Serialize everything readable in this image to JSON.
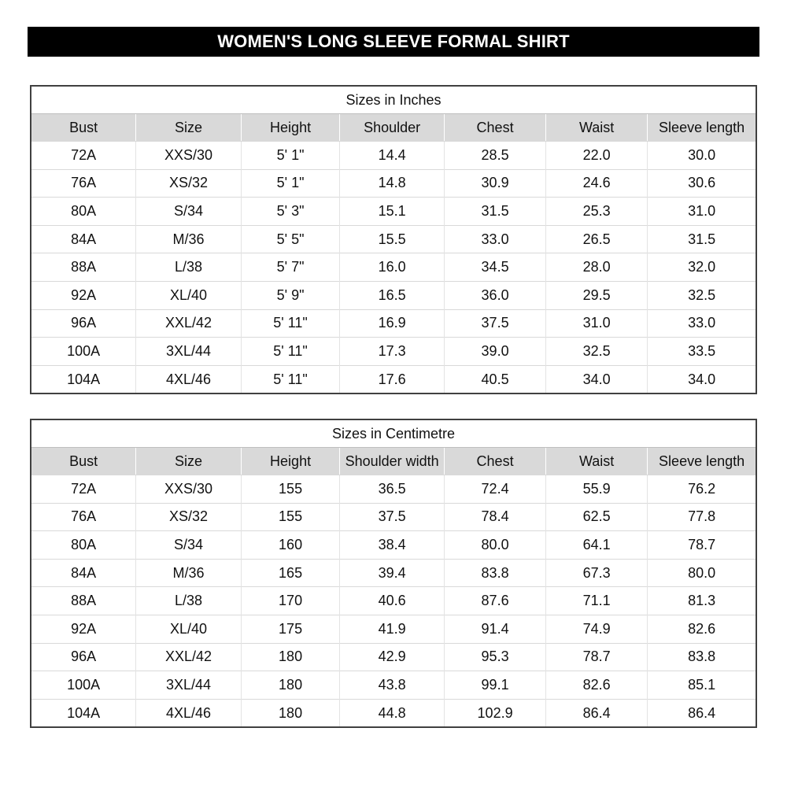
{
  "banner": {
    "title": "WOMEN'S LONG SLEEVE FORMAL SHIRT"
  },
  "colors": {
    "banner_bg": "#000000",
    "banner_text": "#ffffff",
    "header_fill": "#d9d9d9",
    "grid_line": "#d9d9d9",
    "outer_border": "#404040"
  },
  "tables": [
    {
      "title": "Sizes in Inches",
      "columns": [
        "Bust",
        "Size",
        "Height",
        "Shoulder",
        "Chest",
        "Waist",
        "Sleeve length"
      ],
      "rows": [
        [
          "72A",
          "XXS/30",
          "5' 1\"",
          "14.4",
          "28.5",
          "22.0",
          "30.0"
        ],
        [
          "76A",
          "XS/32",
          "5' 1\"",
          "14.8",
          "30.9",
          "24.6",
          "30.6"
        ],
        [
          "80A",
          "S/34",
          "5' 3\"",
          "15.1",
          "31.5",
          "25.3",
          "31.0"
        ],
        [
          "84A",
          "M/36",
          "5' 5\"",
          "15.5",
          "33.0",
          "26.5",
          "31.5"
        ],
        [
          "88A",
          "L/38",
          "5' 7\"",
          "16.0",
          "34.5",
          "28.0",
          "32.0"
        ],
        [
          "92A",
          "XL/40",
          "5' 9\"",
          "16.5",
          "36.0",
          "29.5",
          "32.5"
        ],
        [
          "96A",
          "XXL/42",
          "5' 11\"",
          "16.9",
          "37.5",
          "31.0",
          "33.0"
        ],
        [
          "100A",
          "3XL/44",
          "5' 11\"",
          "17.3",
          "39.0",
          "32.5",
          "33.5"
        ],
        [
          "104A",
          "4XL/46",
          "5' 11\"",
          "17.6",
          "40.5",
          "34.0",
          "34.0"
        ]
      ]
    },
    {
      "title": "Sizes in Centimetre",
      "columns": [
        "Bust",
        "Size",
        "Height",
        "Shoulder width",
        "Chest",
        "Waist",
        "Sleeve length"
      ],
      "rows": [
        [
          "72A",
          "XXS/30",
          "155",
          "36.5",
          "72.4",
          "55.9",
          "76.2"
        ],
        [
          "76A",
          "XS/32",
          "155",
          "37.5",
          "78.4",
          "62.5",
          "77.8"
        ],
        [
          "80A",
          "S/34",
          "160",
          "38.4",
          "80.0",
          "64.1",
          "78.7"
        ],
        [
          "84A",
          "M/36",
          "165",
          "39.4",
          "83.8",
          "67.3",
          "80.0"
        ],
        [
          "88A",
          "L/38",
          "170",
          "40.6",
          "87.6",
          "71.1",
          "81.3"
        ],
        [
          "92A",
          "XL/40",
          "175",
          "41.9",
          "91.4",
          "74.9",
          "82.6"
        ],
        [
          "96A",
          "XXL/42",
          "180",
          "42.9",
          "95.3",
          "78.7",
          "83.8"
        ],
        [
          "100A",
          "3XL/44",
          "180",
          "43.8",
          "99.1",
          "82.6",
          "85.1"
        ],
        [
          "104A",
          "4XL/46",
          "180",
          "44.8",
          "102.9",
          "86.4",
          "86.4"
        ]
      ]
    }
  ]
}
